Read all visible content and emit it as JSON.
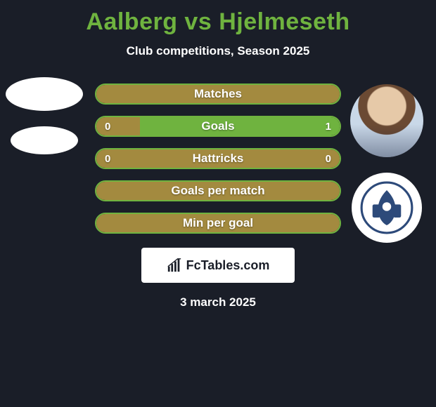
{
  "title": {
    "text": "Aalberg vs Hjelmeseth",
    "color": "#6fb33f",
    "fontsize": 34
  },
  "subtitle": {
    "text": "Club competitions, Season 2025",
    "color": "#ffffff",
    "fontsize": 17
  },
  "background_color": "#1a1e28",
  "bar_style": {
    "height": 30,
    "radius": 15,
    "label_fontsize": 17,
    "value_fontsize": 15,
    "border_color": "#6fb33f",
    "border_width": 2,
    "left_fill_color": "#a38a3f",
    "right_fill_color": "#6fb33f",
    "neutral_fill_color": "#a38a3f"
  },
  "bars": [
    {
      "label": "Matches",
      "left": null,
      "right": null,
      "left_pct": 100,
      "right_pct": 0,
      "left_color": "#a38a3f",
      "right_color": "#6fb33f"
    },
    {
      "label": "Goals",
      "left": "0",
      "right": "1",
      "left_pct": 18,
      "right_pct": 82,
      "left_color": "#a38a3f",
      "right_color": "#6fb33f"
    },
    {
      "label": "Hattricks",
      "left": "0",
      "right": "0",
      "left_pct": 100,
      "right_pct": 0,
      "left_color": "#a38a3f",
      "right_color": "#6fb33f"
    },
    {
      "label": "Goals per match",
      "left": null,
      "right": null,
      "left_pct": 100,
      "right_pct": 0,
      "left_color": "#a38a3f",
      "right_color": "#6fb33f"
    },
    {
      "label": "Min per goal",
      "left": null,
      "right": null,
      "left_pct": 100,
      "right_pct": 0,
      "left_color": "#a38a3f",
      "right_color": "#6fb33f"
    }
  ],
  "left_player": {
    "name": "Aalberg",
    "avatar_type": "placeholder"
  },
  "right_player": {
    "name": "Hjelmeseth",
    "avatar_type": "photo",
    "crest_bg": "#ffffff",
    "crest_fg": "#2d4a7a"
  },
  "logo": {
    "text": "FcTables.com",
    "bg": "#ffffff",
    "color": "#1a1e28",
    "icon_color": "#1a1e28"
  },
  "date": {
    "text": "3 march 2025",
    "color": "#ffffff",
    "fontsize": 17
  }
}
